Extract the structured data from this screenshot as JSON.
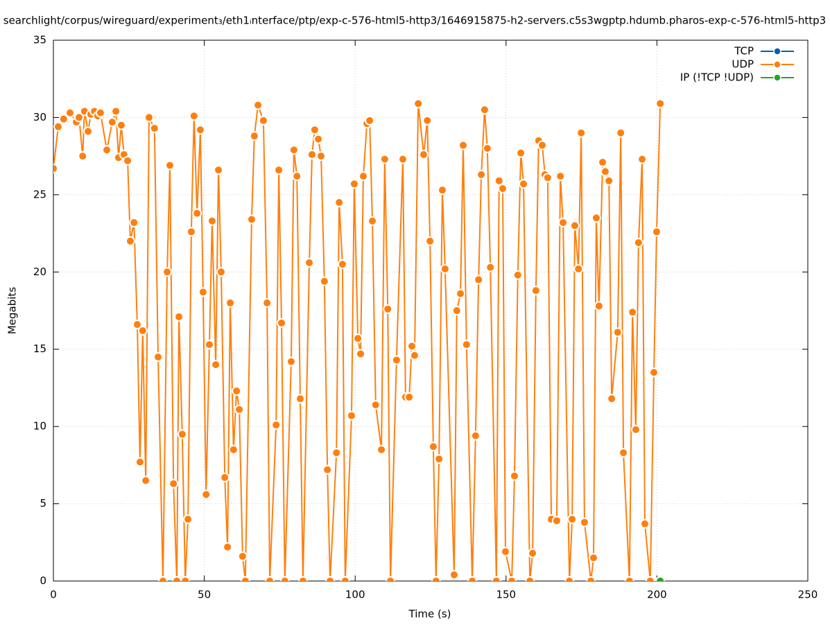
{
  "chart_data": {
    "type": "line",
    "title": "searchlight/corpus/wireguard/experiment₃/eth1ᵢnterface/ptp/exp-c-576-html5-http3/1646915875-h2-servers.c5s3wgptp.hdumb.pharos-exp-c-576-html5-http3",
    "x_label": "Time (s)",
    "y_label": "Megabits",
    "xlim": [
      0,
      250
    ],
    "xticks": [
      0,
      50,
      100,
      150,
      200,
      250
    ],
    "ylim": [
      0,
      35
    ],
    "yticks": [
      0,
      5,
      10,
      15,
      20,
      25,
      30,
      35
    ],
    "grid": true,
    "legend": "top-right",
    "series": [
      {
        "name": "TCP",
        "color": "#0060ad",
        "x": [],
        "values": []
      },
      {
        "name": "UDP",
        "color": "#ff7f0e",
        "x": [
          0,
          1.6,
          3.4,
          5.5,
          7.6,
          8.5,
          9.7,
          10.3,
          11.5,
          12.4,
          13.6,
          14.7,
          15.6,
          17.7,
          19.5,
          20.7,
          21.6,
          22.5,
          23.4,
          24.6,
          25.5,
          26.7,
          27.8,
          28.7,
          29.6,
          30.6,
          31.7,
          33.5,
          34.7,
          36.3,
          37.7,
          38.6,
          39.8,
          40.9,
          41.6,
          42.7,
          43.7,
          44.6,
          45.7,
          46.6,
          47.6,
          48.7,
          49.6,
          50.6,
          51.7,
          52.6,
          53.8,
          54.7,
          55.6,
          56.8,
          57.7,
          58.6,
          59.7,
          60.7,
          61.6,
          62.7,
          63.6,
          65.7,
          66.6,
          67.8,
          69.6,
          70.8,
          71.7,
          73.8,
          74.7,
          75.6,
          76.7,
          78.8,
          79.7,
          80.7,
          81.8,
          82.7,
          84.8,
          85.7,
          86.6,
          87.8,
          88.7,
          89.8,
          90.8,
          91.7,
          93.8,
          94.7,
          95.8,
          96.7,
          98.8,
          99.7,
          100.9,
          101.8,
          102.7,
          103.9,
          104.8,
          105.7,
          106.8,
          108.7,
          109.8,
          110.8,
          111.7,
          113.7,
          115.8,
          116.7,
          117.9,
          118.8,
          119.7,
          120.9,
          122.7,
          123.9,
          124.8,
          125.9,
          126.8,
          127.8,
          128.9,
          129.8,
          132.8,
          133.7,
          134.9,
          135.8,
          136.9,
          138.8,
          139.9,
          140.9,
          141.8,
          142.9,
          143.8,
          144.8,
          146.8,
          147.7,
          148.9,
          149.8,
          151.9,
          152.8,
          153.9,
          154.9,
          155.8,
          157.9,
          158.8,
          159.9,
          160.8,
          162.0,
          162.9,
          163.8,
          165.0,
          166.8,
          168.0,
          168.9,
          171.0,
          171.9,
          172.8,
          174.0,
          174.9,
          176.0,
          178.1,
          179.0,
          179.9,
          180.8,
          182.0,
          182.9,
          184.1,
          185.0,
          187.0,
          188.0,
          188.9,
          190.9,
          191.9,
          193.0,
          193.9,
          195.1,
          196.0,
          197.8,
          199.0,
          199.9,
          201.1
        ],
        "values": [
          26.7,
          29.4,
          29.9,
          30.3,
          29.7,
          30.0,
          27.5,
          30.4,
          29.1,
          30.2,
          30.4,
          30.1,
          30.3,
          27.9,
          29.7,
          30.4,
          27.4,
          29.5,
          27.6,
          27.2,
          22.0,
          23.2,
          16.6,
          7.7,
          16.2,
          6.5,
          30.0,
          29.3,
          14.5,
          0,
          20.0,
          26.9,
          6.3,
          0,
          17.1,
          9.5,
          0,
          4.0,
          22.6,
          30.1,
          23.8,
          29.2,
          18.7,
          5.6,
          15.3,
          23.3,
          14.0,
          26.6,
          20.0,
          6.7,
          2.2,
          18.0,
          8.5,
          12.3,
          11.1,
          1.6,
          0,
          23.4,
          28.8,
          30.8,
          29.8,
          18.0,
          0,
          10.1,
          26.6,
          16.7,
          0,
          14.2,
          27.9,
          26.2,
          11.8,
          0,
          20.6,
          27.6,
          29.2,
          28.6,
          27.5,
          19.4,
          7.2,
          0,
          8.3,
          24.5,
          20.5,
          0,
          10.7,
          25.7,
          15.7,
          14.7,
          26.2,
          29.6,
          29.8,
          23.3,
          11.4,
          8.5,
          27.3,
          17.6,
          0,
          14.3,
          27.3,
          11.9,
          11.9,
          15.2,
          14.6,
          30.9,
          27.6,
          29.8,
          22.0,
          8.7,
          0,
          7.9,
          25.3,
          20.2,
          0.4,
          17.5,
          18.6,
          28.2,
          15.3,
          0,
          9.4,
          19.5,
          26.3,
          30.5,
          28.0,
          20.3,
          0,
          25.9,
          25.4,
          1.9,
          0,
          6.8,
          19.8,
          27.7,
          25.7,
          0,
          1.8,
          18.8,
          28.5,
          28.2,
          26.3,
          26.1,
          4.0,
          3.9,
          26.2,
          23.2,
          0,
          4.0,
          23.0,
          20.2,
          29.0,
          3.8,
          0,
          1.5,
          23.5,
          17.8,
          27.1,
          26.5,
          25.9,
          11.8,
          16.1,
          29.0,
          8.3,
          0,
          17.4,
          9.8,
          21.9,
          27.3,
          3.7,
          0,
          13.5,
          22.6,
          30.9
        ]
      },
      {
        "name": "IP (!TCP  !UDP)",
        "color": "#2ca02c",
        "x": [
          201.1
        ],
        "values": [
          0
        ]
      }
    ]
  }
}
